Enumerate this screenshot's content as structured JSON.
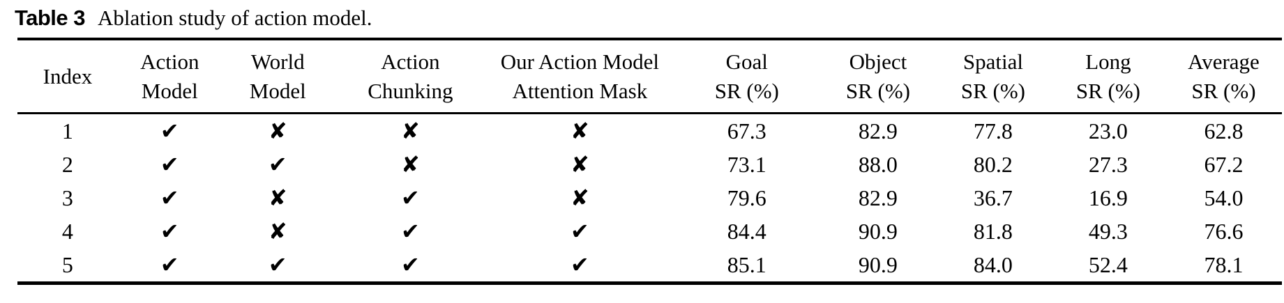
{
  "caption": {
    "label": "Table 3",
    "text": "Ablation study of action model."
  },
  "colors": {
    "background": "#ffffff",
    "text": "#000000",
    "rule": "#000000"
  },
  "table": {
    "glyphs": {
      "check": "✔",
      "cross": "✘"
    },
    "columns": [
      {
        "id": "index",
        "type": "text",
        "lines": [
          "Index"
        ]
      },
      {
        "id": "action_model",
        "type": "mark",
        "lines": [
          "Action",
          "Model"
        ]
      },
      {
        "id": "world_model",
        "type": "mark",
        "lines": [
          "World",
          "Model"
        ]
      },
      {
        "id": "action_chunking",
        "type": "mark",
        "lines": [
          "Action",
          "Chunking"
        ]
      },
      {
        "id": "attention_mask",
        "type": "mark",
        "lines": [
          "Our Action Model",
          "Attention Mask"
        ]
      },
      {
        "id": "goal_sr",
        "type": "number",
        "lines": [
          "Goal",
          "SR (%)"
        ]
      },
      {
        "id": "object_sr",
        "type": "number",
        "lines": [
          "Object",
          "SR (%)"
        ]
      },
      {
        "id": "spatial_sr",
        "type": "number",
        "lines": [
          "Spatial",
          "SR (%)"
        ]
      },
      {
        "id": "long_sr",
        "type": "number",
        "lines": [
          "Long",
          "SR (%)"
        ]
      },
      {
        "id": "average_sr",
        "type": "number",
        "lines": [
          "Average",
          "SR (%)"
        ]
      }
    ],
    "rows": [
      {
        "index": "1",
        "action_model": true,
        "world_model": false,
        "action_chunking": false,
        "attention_mask": false,
        "goal_sr": "67.3",
        "object_sr": "82.9",
        "spatial_sr": "77.8",
        "long_sr": "23.0",
        "average_sr": "62.8"
      },
      {
        "index": "2",
        "action_model": true,
        "world_model": true,
        "action_chunking": false,
        "attention_mask": false,
        "goal_sr": "73.1",
        "object_sr": "88.0",
        "spatial_sr": "80.2",
        "long_sr": "27.3",
        "average_sr": "67.2"
      },
      {
        "index": "3",
        "action_model": true,
        "world_model": false,
        "action_chunking": true,
        "attention_mask": false,
        "goal_sr": "79.6",
        "object_sr": "82.9",
        "spatial_sr": "36.7",
        "long_sr": "16.9",
        "average_sr": "54.0"
      },
      {
        "index": "4",
        "action_model": true,
        "world_model": false,
        "action_chunking": true,
        "attention_mask": true,
        "goal_sr": "84.4",
        "object_sr": "90.9",
        "spatial_sr": "81.8",
        "long_sr": "49.3",
        "average_sr": "76.6"
      },
      {
        "index": "5",
        "action_model": true,
        "world_model": true,
        "action_chunking": true,
        "attention_mask": true,
        "goal_sr": "85.1",
        "object_sr": "90.9",
        "spatial_sr": "84.0",
        "long_sr": "52.4",
        "average_sr": "78.1"
      }
    ]
  }
}
